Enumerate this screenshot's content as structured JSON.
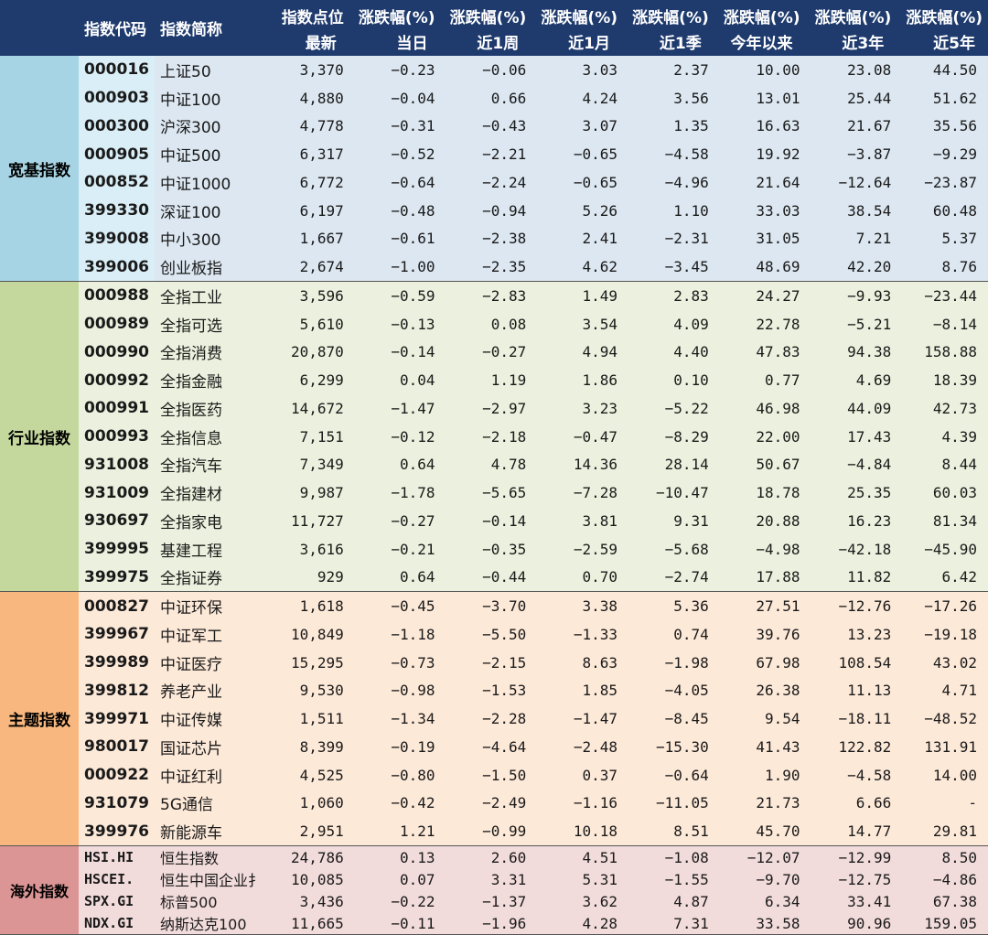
{
  "header": {
    "row1": [
      "指数代码",
      "指数简称",
      "指数点位",
      "涨跌幅(%)",
      "涨跌幅(%)",
      "涨跌幅(%)",
      "涨跌幅(%)",
      "涨跌幅(%)",
      "涨跌幅(%)",
      "涨跌幅(%)"
    ],
    "row2": [
      "最新",
      "当日",
      "近1周",
      "近1月",
      "近1季",
      "今年以来",
      "近3年",
      "近5年"
    ]
  },
  "groups": [
    {
      "label": "宽基指数",
      "rows": [
        [
          "000016",
          "上证50",
          "3,370",
          "-0.23",
          "-0.06",
          "3.03",
          "2.37",
          "10.00",
          "23.08",
          "44.50"
        ],
        [
          "000903",
          "中证100",
          "4,880",
          "-0.04",
          "0.66",
          "4.24",
          "3.56",
          "13.01",
          "25.44",
          "51.62"
        ],
        [
          "000300",
          "沪深300",
          "4,778",
          "-0.31",
          "-0.43",
          "3.07",
          "1.35",
          "16.63",
          "21.67",
          "35.56"
        ],
        [
          "000905",
          "中证500",
          "6,317",
          "-0.52",
          "-2.21",
          "-0.65",
          "-4.58",
          "19.92",
          "-3.87",
          "-9.29"
        ],
        [
          "000852",
          "中证1000",
          "6,772",
          "-0.64",
          "-2.24",
          "-0.65",
          "-4.96",
          "21.64",
          "-12.64",
          "-23.87"
        ],
        [
          "399330",
          "深证100",
          "6,197",
          "-0.48",
          "-0.94",
          "5.26",
          "1.10",
          "33.03",
          "38.54",
          "60.48"
        ],
        [
          "399008",
          "中小300",
          "1,667",
          "-0.61",
          "-2.38",
          "2.41",
          "-2.31",
          "31.05",
          "7.21",
          "5.37"
        ],
        [
          "399006",
          "创业板指",
          "2,674",
          "-1.00",
          "-2.35",
          "4.62",
          "-3.45",
          "48.69",
          "42.20",
          "8.76"
        ]
      ]
    },
    {
      "label": "行业指数",
      "rows": [
        [
          "000988",
          "全指工业",
          "3,596",
          "-0.59",
          "-2.83",
          "1.49",
          "2.83",
          "24.27",
          "-9.93",
          "-23.44"
        ],
        [
          "000989",
          "全指可选",
          "5,610",
          "-0.13",
          "0.08",
          "3.54",
          "4.09",
          "22.78",
          "-5.21",
          "-8.14"
        ],
        [
          "000990",
          "全指消费",
          "20,870",
          "-0.14",
          "-0.27",
          "4.94",
          "4.40",
          "47.83",
          "94.38",
          "158.88"
        ],
        [
          "000992",
          "全指金融",
          "6,299",
          "0.04",
          "1.19",
          "1.86",
          "0.10",
          "0.77",
          "4.69",
          "18.39"
        ],
        [
          "000991",
          "全指医药",
          "14,672",
          "-1.47",
          "-2.97",
          "3.23",
          "-5.22",
          "46.98",
          "44.09",
          "42.73"
        ],
        [
          "000993",
          "全指信息",
          "7,151",
          "-0.12",
          "-2.18",
          "-0.47",
          "-8.29",
          "22.00",
          "17.43",
          "4.39"
        ],
        [
          "931008",
          "全指汽车",
          "7,349",
          "0.64",
          "4.78",
          "14.36",
          "28.14",
          "50.67",
          "-4.84",
          "8.44"
        ],
        [
          "931009",
          "全指建材",
          "9,987",
          "-1.78",
          "-5.65",
          "-7.28",
          "-10.47",
          "18.78",
          "25.35",
          "60.03"
        ],
        [
          "930697",
          "全指家电",
          "11,727",
          "-0.27",
          "-0.14",
          "3.81",
          "9.31",
          "20.88",
          "16.23",
          "81.34"
        ],
        [
          "399995",
          "基建工程",
          "3,616",
          "-0.21",
          "-0.35",
          "-2.59",
          "-5.68",
          "-4.98",
          "-42.18",
          "-45.90"
        ],
        [
          "399975",
          "全指证券",
          "929",
          "0.64",
          "-0.44",
          "0.70",
          "-2.74",
          "17.88",
          "11.82",
          "6.42"
        ]
      ]
    },
    {
      "label": "主题指数",
      "rows": [
        [
          "000827",
          "中证环保",
          "1,618",
          "-0.45",
          "-3.70",
          "3.38",
          "5.36",
          "27.51",
          "-12.76",
          "-17.26"
        ],
        [
          "399967",
          "中证军工",
          "10,849",
          "-1.18",
          "-5.50",
          "-1.33",
          "0.74",
          "39.76",
          "13.23",
          "-19.18"
        ],
        [
          "399989",
          "中证医疗",
          "15,295",
          "-0.73",
          "-2.15",
          "8.63",
          "-1.98",
          "67.98",
          "108.54",
          "43.02"
        ],
        [
          "399812",
          "养老产业",
          "9,530",
          "-0.98",
          "-1.53",
          "1.85",
          "-4.05",
          "26.38",
          "11.13",
          "4.71"
        ],
        [
          "399971",
          "中证传媒",
          "1,511",
          "-1.34",
          "-2.28",
          "-1.47",
          "-8.45",
          "9.54",
          "-18.11",
          "-48.52"
        ],
        [
          "980017",
          "国证芯片",
          "8,399",
          "-0.19",
          "-4.64",
          "-2.48",
          "-15.30",
          "41.43",
          "122.82",
          "131.91"
        ],
        [
          "000922",
          "中证红利",
          "4,525",
          "-0.80",
          "-1.50",
          "0.37",
          "-0.64",
          "1.90",
          "-4.58",
          "14.00"
        ],
        [
          "931079",
          "5G通信",
          "1,060",
          "-0.42",
          "-2.49",
          "-1.16",
          "-11.05",
          "21.73",
          "6.66",
          "-"
        ],
        [
          "399976",
          "新能源车",
          "2,951",
          "1.21",
          "-0.99",
          "10.18",
          "8.51",
          "45.70",
          "14.77",
          "29.81"
        ]
      ]
    },
    {
      "label": "海外指数",
      "rows": [
        [
          "HSI.HI",
          "恒生指数",
          "24,786",
          "0.13",
          "2.60",
          "4.51",
          "-1.08",
          "-12.07",
          "-12.99",
          "8.50"
        ],
        [
          "HSCEI.",
          "恒生中国企业扌",
          "10,085",
          "0.07",
          "3.31",
          "5.31",
          "-1.55",
          "-9.70",
          "-12.75",
          "-4.86"
        ],
        [
          "SPX.GI",
          "标普500",
          "3,436",
          "-0.22",
          "-1.37",
          "3.62",
          "4.87",
          "6.34",
          "33.41",
          "67.38"
        ],
        [
          "NDX.GI",
          "纳斯达克100",
          "11,665",
          "-0.11",
          "-1.96",
          "4.28",
          "7.31",
          "33.58",
          "90.96",
          "159.05"
        ]
      ]
    }
  ]
}
